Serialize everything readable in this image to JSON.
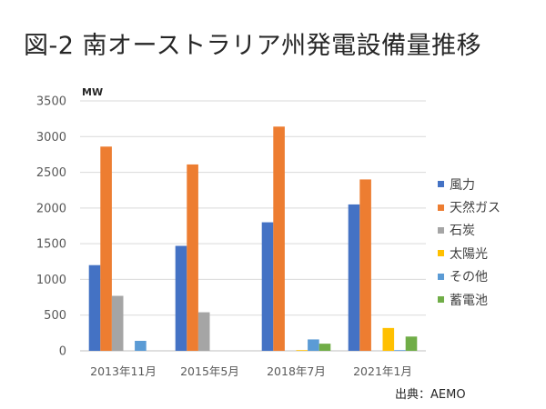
{
  "title": "図-2 南オーストラリア州発電設備量推移",
  "source": "出典：AEMO",
  "chart_data": {
    "type": "bar",
    "unit_label": "MW",
    "categories": [
      "2013年11月",
      "2015年5月",
      "2018年7月",
      "2021年1月"
    ],
    "ylim": [
      0,
      3500
    ],
    "yticks": [
      0,
      500,
      1000,
      1500,
      2000,
      2500,
      3000,
      3500
    ],
    "legend_position": "right",
    "series": [
      {
        "name": "風力",
        "color": "#4472C4",
        "values": [
          1200,
          1470,
          1800,
          2050
        ]
      },
      {
        "name": "天然ガス",
        "color": "#ED7D31",
        "values": [
          2860,
          2610,
          3140,
          2400
        ]
      },
      {
        "name": "石炭",
        "color": "#A5A5A5",
        "values": [
          770,
          540,
          0,
          0
        ]
      },
      {
        "name": "太陽光",
        "color": "#FFC000",
        "values": [
          0,
          0,
          10,
          320
        ]
      },
      {
        "name": "その他",
        "color": "#5B9BD5",
        "values": [
          140,
          0,
          160,
          10
        ]
      },
      {
        "name": "蓄電池",
        "color": "#70AD47",
        "values": [
          0,
          0,
          100,
          200
        ]
      }
    ]
  }
}
